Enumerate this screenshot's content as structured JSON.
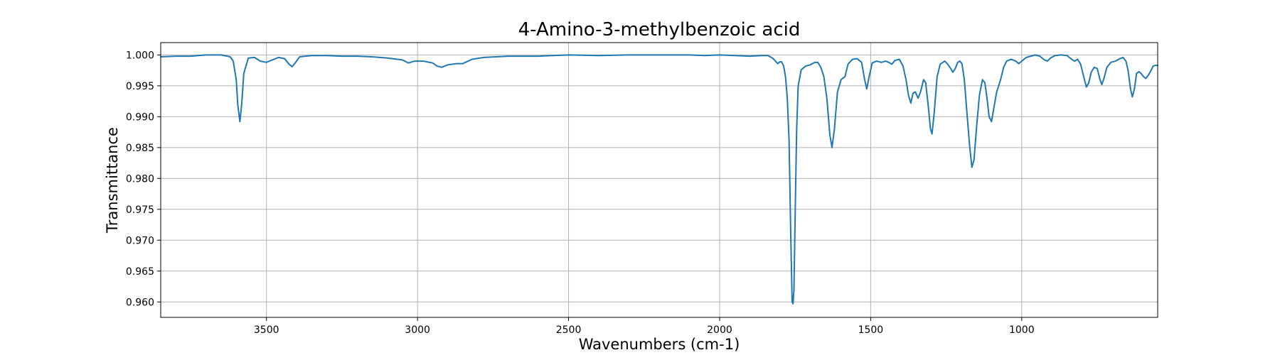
{
  "chart_data": {
    "type": "line",
    "title": "4-Amino-3-methylbenzoic acid",
    "xlabel": "Wavenumbers (cm-1)",
    "ylabel": "Transmittance",
    "xlim": [
      3850,
      550
    ],
    "ylim": [
      0.9575,
      1.002
    ],
    "x_reversed": true,
    "grid": true,
    "line_color": "#1f77b4",
    "xticks": [
      3500,
      3000,
      2500,
      2000,
      1500,
      1000
    ],
    "yticks": [
      0.96,
      0.965,
      0.97,
      0.975,
      0.98,
      0.985,
      0.99,
      0.995,
      1.0
    ],
    "xtick_labels": [
      "3500",
      "3000",
      "2500",
      "2000",
      "1500",
      "1000"
    ],
    "ytick_labels": [
      "0.960",
      "0.965",
      "0.970",
      "0.975",
      "0.980",
      "0.985",
      "0.990",
      "0.995",
      "1.000"
    ],
    "series": [
      {
        "points": [
          [
            3850,
            0.9997
          ],
          [
            3800,
            0.9998
          ],
          [
            3750,
            0.9998
          ],
          [
            3700,
            1.0
          ],
          [
            3650,
            1.0
          ],
          [
            3620,
            0.9997
          ],
          [
            3610,
            0.999
          ],
          [
            3600,
            0.996
          ],
          [
            3595,
            0.992
          ],
          [
            3588,
            0.9892
          ],
          [
            3582,
            0.992
          ],
          [
            3575,
            0.997
          ],
          [
            3560,
            0.9995
          ],
          [
            3540,
            0.9996
          ],
          [
            3520,
            0.999
          ],
          [
            3500,
            0.9988
          ],
          [
            3480,
            0.9992
          ],
          [
            3460,
            0.9996
          ],
          [
            3440,
            0.9994
          ],
          [
            3425,
            0.9985
          ],
          [
            3415,
            0.9981
          ],
          [
            3405,
            0.9987
          ],
          [
            3390,
            0.9997
          ],
          [
            3350,
            0.9999
          ],
          [
            3300,
            0.9999
          ],
          [
            3250,
            0.9998
          ],
          [
            3200,
            0.9998
          ],
          [
            3150,
            0.9997
          ],
          [
            3100,
            0.9995
          ],
          [
            3050,
            0.9992
          ],
          [
            3030,
            0.9987
          ],
          [
            3010,
            0.999
          ],
          [
            2980,
            0.999
          ],
          [
            2950,
            0.9987
          ],
          [
            2935,
            0.9982
          ],
          [
            2920,
            0.998
          ],
          [
            2900,
            0.9984
          ],
          [
            2870,
            0.9986
          ],
          [
            2850,
            0.9986
          ],
          [
            2820,
            0.9993
          ],
          [
            2780,
            0.9996
          ],
          [
            2700,
            0.9998
          ],
          [
            2600,
            0.9998
          ],
          [
            2500,
            1.0
          ],
          [
            2400,
            0.9999
          ],
          [
            2300,
            1.0
          ],
          [
            2200,
            1.0
          ],
          [
            2100,
            1.0
          ],
          [
            2050,
            0.9999
          ],
          [
            2000,
            1.0
          ],
          [
            1950,
            0.9999
          ],
          [
            1900,
            0.9998
          ],
          [
            1860,
            0.9999
          ],
          [
            1840,
            0.9999
          ],
          [
            1825,
            0.9995
          ],
          [
            1815,
            0.999
          ],
          [
            1808,
            0.9986
          ],
          [
            1800,
            0.9989
          ],
          [
            1795,
            0.9989
          ],
          [
            1788,
            0.9982
          ],
          [
            1782,
            0.9965
          ],
          [
            1776,
            0.993
          ],
          [
            1770,
            0.986
          ],
          [
            1765,
            0.972
          ],
          [
            1760,
            0.96
          ],
          [
            1757,
            0.9597
          ],
          [
            1754,
            0.962
          ],
          [
            1750,
            0.974
          ],
          [
            1745,
            0.988
          ],
          [
            1740,
            0.995
          ],
          [
            1730,
            0.9976
          ],
          [
            1715,
            0.9982
          ],
          [
            1700,
            0.9984
          ],
          [
            1685,
            0.9988
          ],
          [
            1675,
            0.9988
          ],
          [
            1665,
            0.998
          ],
          [
            1655,
            0.9965
          ],
          [
            1645,
            0.993
          ],
          [
            1635,
            0.987
          ],
          [
            1628,
            0.985
          ],
          [
            1620,
            0.988
          ],
          [
            1610,
            0.994
          ],
          [
            1598,
            0.996
          ],
          [
            1585,
            0.9965
          ],
          [
            1575,
            0.9985
          ],
          [
            1560,
            0.9993
          ],
          [
            1545,
            0.9994
          ],
          [
            1530,
            0.9988
          ],
          [
            1520,
            0.996
          ],
          [
            1513,
            0.9945
          ],
          [
            1505,
            0.9965
          ],
          [
            1495,
            0.9987
          ],
          [
            1480,
            0.999
          ],
          [
            1465,
            0.9988
          ],
          [
            1450,
            0.999
          ],
          [
            1440,
            0.9988
          ],
          [
            1430,
            0.9985
          ],
          [
            1420,
            0.9991
          ],
          [
            1405,
            0.9993
          ],
          [
            1393,
            0.9982
          ],
          [
            1383,
            0.996
          ],
          [
            1375,
            0.9935
          ],
          [
            1367,
            0.9922
          ],
          [
            1360,
            0.9938
          ],
          [
            1352,
            0.994
          ],
          [
            1343,
            0.993
          ],
          [
            1335,
            0.994
          ],
          [
            1325,
            0.996
          ],
          [
            1318,
            0.9955
          ],
          [
            1310,
            0.992
          ],
          [
            1302,
            0.988
          ],
          [
            1297,
            0.9872
          ],
          [
            1290,
            0.9905
          ],
          [
            1280,
            0.9965
          ],
          [
            1270,
            0.9985
          ],
          [
            1255,
            0.999
          ],
          [
            1245,
            0.9985
          ],
          [
            1235,
            0.9978
          ],
          [
            1228,
            0.9972
          ],
          [
            1220,
            0.9978
          ],
          [
            1212,
            0.9988
          ],
          [
            1205,
            0.999
          ],
          [
            1198,
            0.9986
          ],
          [
            1190,
            0.996
          ],
          [
            1182,
            0.991
          ],
          [
            1172,
            0.985
          ],
          [
            1165,
            0.9818
          ],
          [
            1158,
            0.983
          ],
          [
            1150,
            0.988
          ],
          [
            1140,
            0.9935
          ],
          [
            1130,
            0.996
          ],
          [
            1122,
            0.9955
          ],
          [
            1115,
            0.993
          ],
          [
            1108,
            0.99
          ],
          [
            1100,
            0.9892
          ],
          [
            1092,
            0.9915
          ],
          [
            1083,
            0.994
          ],
          [
            1070,
            0.996
          ],
          [
            1060,
            0.998
          ],
          [
            1050,
            0.999
          ],
          [
            1035,
            0.9993
          ],
          [
            1020,
            0.999
          ],
          [
            1010,
            0.9986
          ],
          [
            1000,
            0.999
          ],
          [
            985,
            0.9996
          ],
          [
            970,
            0.9998
          ],
          [
            955,
            1.0
          ],
          [
            940,
            0.9998
          ],
          [
            925,
            0.9992
          ],
          [
            915,
            0.999
          ],
          [
            905,
            0.9995
          ],
          [
            890,
            0.9999
          ],
          [
            870,
            1.0
          ],
          [
            850,
            0.9999
          ],
          [
            835,
            0.9993
          ],
          [
            825,
            0.999
          ],
          [
            815,
            0.9993
          ],
          [
            805,
            0.9985
          ],
          [
            795,
            0.9965
          ],
          [
            786,
            0.9948
          ],
          [
            778,
            0.9955
          ],
          [
            770,
            0.9972
          ],
          [
            760,
            0.998
          ],
          [
            750,
            0.9978
          ],
          [
            742,
            0.9962
          ],
          [
            735,
            0.9952
          ],
          [
            728,
            0.9962
          ],
          [
            718,
            0.998
          ],
          [
            705,
            0.9988
          ],
          [
            690,
            0.999
          ],
          [
            675,
            0.9994
          ],
          [
            665,
            0.9996
          ],
          [
            655,
            0.999
          ],
          [
            648,
            0.9975
          ],
          [
            640,
            0.9945
          ],
          [
            634,
            0.9932
          ],
          [
            627,
            0.9945
          ],
          [
            620,
            0.997
          ],
          [
            612,
            0.9973
          ],
          [
            605,
            0.997
          ],
          [
            597,
            0.9965
          ],
          [
            589,
            0.9962
          ],
          [
            580,
            0.9968
          ],
          [
            572,
            0.9975
          ],
          [
            565,
            0.9982
          ],
          [
            558,
            0.9983
          ],
          [
            550,
            0.9983
          ]
        ]
      }
    ]
  }
}
